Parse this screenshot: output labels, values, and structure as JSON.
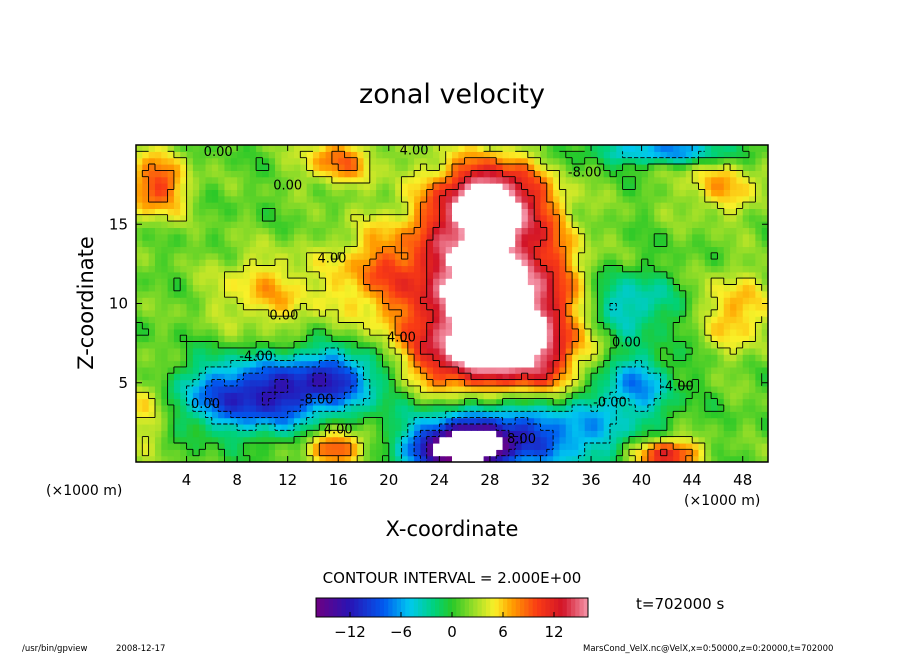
{
  "chart_data": {
    "type": "heatmap",
    "title": "zonal velocity",
    "xlabel": "X-coordinate",
    "ylabel": "Z-coordinate",
    "x_unit_left": "(×1000 m)",
    "x_unit_right": "(×1000 m)",
    "xlim": [
      0,
      50
    ],
    "ylim": [
      0,
      20
    ],
    "x_ticks": [
      4,
      8,
      12,
      16,
      20,
      24,
      28,
      32,
      36,
      40,
      44,
      48
    ],
    "y_ticks": [
      5,
      10,
      15
    ],
    "contour_interval_label": "CONTOUR INTERVAL = 2.000E+00",
    "time_label": "t=702000 s",
    "colorbar": {
      "min": -16,
      "max": 16,
      "ticks": [
        -12,
        -6,
        0,
        6,
        12
      ]
    },
    "contour_labels": [
      {
        "text": "0.00",
        "x": 6.5,
        "y": 19.3
      },
      {
        "text": "0.00",
        "x": 12.0,
        "y": 17.2
      },
      {
        "text": "4.00",
        "x": 22.0,
        "y": 19.4
      },
      {
        "text": "-8.00",
        "x": 35.5,
        "y": 18.0
      },
      {
        "text": "4.00",
        "x": 15.5,
        "y": 12.6
      },
      {
        "text": "0.00",
        "x": 11.7,
        "y": 9.0
      },
      {
        "text": "4.00",
        "x": 21.0,
        "y": 7.6
      },
      {
        "text": "-4.00",
        "x": 9.5,
        "y": 6.4
      },
      {
        "text": "0.00",
        "x": 38.8,
        "y": 7.3
      },
      {
        "text": "0.00",
        "x": 5.5,
        "y": 3.4
      },
      {
        "text": "-8.00",
        "x": 14.3,
        "y": 3.7
      },
      {
        "text": "4.00",
        "x": 16.0,
        "y": 1.8
      },
      {
        "text": "-4.00",
        "x": 42.8,
        "y": 4.5
      },
      {
        "text": "-0.00",
        "x": 37.5,
        "y": 3.5
      },
      {
        "text": "8.00",
        "x": 30.5,
        "y": 1.2
      }
    ],
    "field_features": [
      {
        "name": "jet-core",
        "x": 26.5,
        "y": 11.0,
        "rx": 5.0,
        "ry": 5.5,
        "value": 16
      },
      {
        "name": "jet-upper",
        "x": 28.0,
        "y": 16.5,
        "rx": 4.0,
        "ry": 2.5,
        "value": 14
      },
      {
        "name": "jet-wall",
        "x": 32.0,
        "y": 9.0,
        "rx": 3.5,
        "ry": 6.0,
        "value": 10
      },
      {
        "name": "jet-lower",
        "x": 27.0,
        "y": 6.5,
        "rx": 6.0,
        "ry": 2.5,
        "value": 8
      },
      {
        "name": "upper-left-warm",
        "x": 1.5,
        "y": 17.5,
        "rx": 2.5,
        "ry": 2.0,
        "value": 9
      },
      {
        "name": "upper-mid-warm",
        "x": 16.0,
        "y": 19.0,
        "rx": 3.0,
        "ry": 1.5,
        "value": 7
      },
      {
        "name": "left-warm",
        "x": 10.5,
        "y": 10.8,
        "rx": 4.5,
        "ry": 2.5,
        "value": 5
      },
      {
        "name": "mid-warm",
        "x": 19.0,
        "y": 12.0,
        "rx": 3.5,
        "ry": 3.0,
        "value": 6
      },
      {
        "name": "left-cold",
        "x": 9.5,
        "y": 4.2,
        "rx": 6.0,
        "ry": 2.2,
        "value": -13
      },
      {
        "name": "left-cold-ext",
        "x": 16.0,
        "y": 5.5,
        "rx": 4.0,
        "ry": 1.8,
        "value": -9
      },
      {
        "name": "bottom-cold",
        "x": 30.0,
        "y": 2.0,
        "rx": 7.5,
        "ry": 2.5,
        "value": -14
      },
      {
        "name": "bottom-white",
        "x": 25.5,
        "y": 0.8,
        "rx": 3.5,
        "ry": 1.3,
        "value": -17
      },
      {
        "name": "right-cold",
        "x": 39.5,
        "y": 5.0,
        "rx": 3.0,
        "ry": 2.0,
        "value": -7
      },
      {
        "name": "right-mid-cold",
        "x": 39.0,
        "y": 10.0,
        "rx": 3.5,
        "ry": 2.0,
        "value": -6
      },
      {
        "name": "top-cold",
        "x": 42.0,
        "y": 19.6,
        "rx": 6.0,
        "ry": 0.8,
        "value": -8
      },
      {
        "name": "right-warm",
        "x": 47.5,
        "y": 9.5,
        "rx": 2.5,
        "ry": 2.5,
        "value": 6
      },
      {
        "name": "right-upper-warm",
        "x": 46.5,
        "y": 17.5,
        "rx": 3.5,
        "ry": 2.0,
        "value": 5
      },
      {
        "name": "bottom-left-warm",
        "x": 1.0,
        "y": 3.5,
        "rx": 1.8,
        "ry": 2.5,
        "value": 5
      },
      {
        "name": "bottom-mid-warm",
        "x": 16.0,
        "y": 1.0,
        "rx": 2.5,
        "ry": 1.2,
        "value": 9
      },
      {
        "name": "bottom-right-warm",
        "x": 42.0,
        "y": 0.5,
        "rx": 2.5,
        "ry": 1.0,
        "value": 12
      }
    ]
  },
  "footer": {
    "program": "/usr/bin/gpview",
    "date": "2008-12-17",
    "file_info": "MarsCond_VelX.nc@VelX,x=0:50000,z=0:20000,t=702000"
  }
}
